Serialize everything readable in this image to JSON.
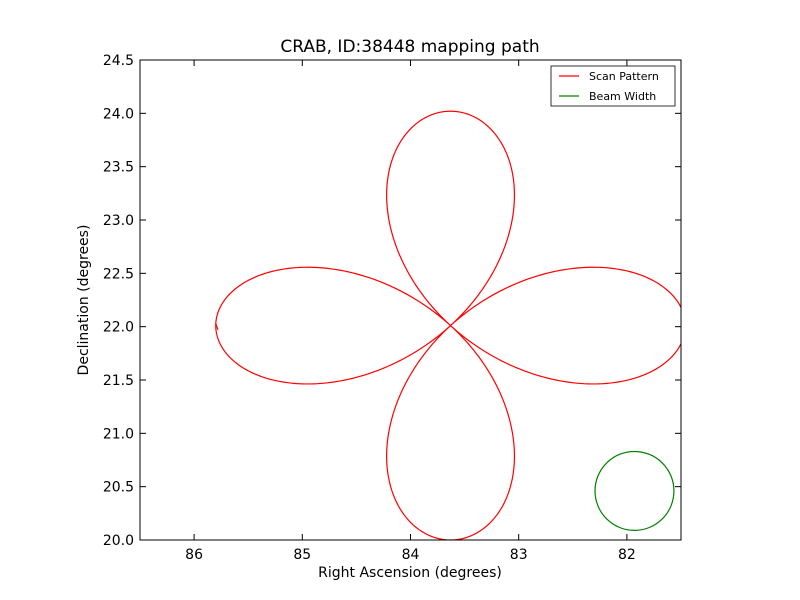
{
  "chart_data": {
    "type": "line",
    "title": "CRAB, ID:38448 mapping path",
    "xlabel": "Right Ascension (degrees)",
    "ylabel": "Declination (degrees)",
    "xlim": [
      86.5,
      81.5
    ],
    "ylim": [
      20.0,
      24.5
    ],
    "xticks": [
      86,
      85,
      84,
      83,
      82
    ],
    "xtick_labels": [
      "86",
      "85",
      "84",
      "83",
      "82"
    ],
    "yticks": [
      20.0,
      20.5,
      21.0,
      21.5,
      22.0,
      22.5,
      23.0,
      23.5,
      24.0,
      24.5
    ],
    "ytick_labels": [
      "20.0",
      "20.5",
      "21.0",
      "21.5",
      "22.0",
      "22.5",
      "23.0",
      "23.5",
      "24.0",
      "24.5"
    ],
    "legend_position": "top-right",
    "series": [
      {
        "name": "Scan Pattern",
        "color": "#ff0000",
        "kind": "four-petal rosette",
        "center": [
          83.63,
          22.01
        ],
        "petal_extent_ra": 2.17,
        "petal_extent_dec": 2.01,
        "end_points": [
          [
            85.8,
            22.03
          ],
          [
            85.78,
            21.97
          ]
        ]
      },
      {
        "name": "Beam Width",
        "color": "#008000",
        "kind": "circle",
        "center": [
          81.93,
          20.46
        ],
        "radius_dec": 0.37
      }
    ]
  }
}
